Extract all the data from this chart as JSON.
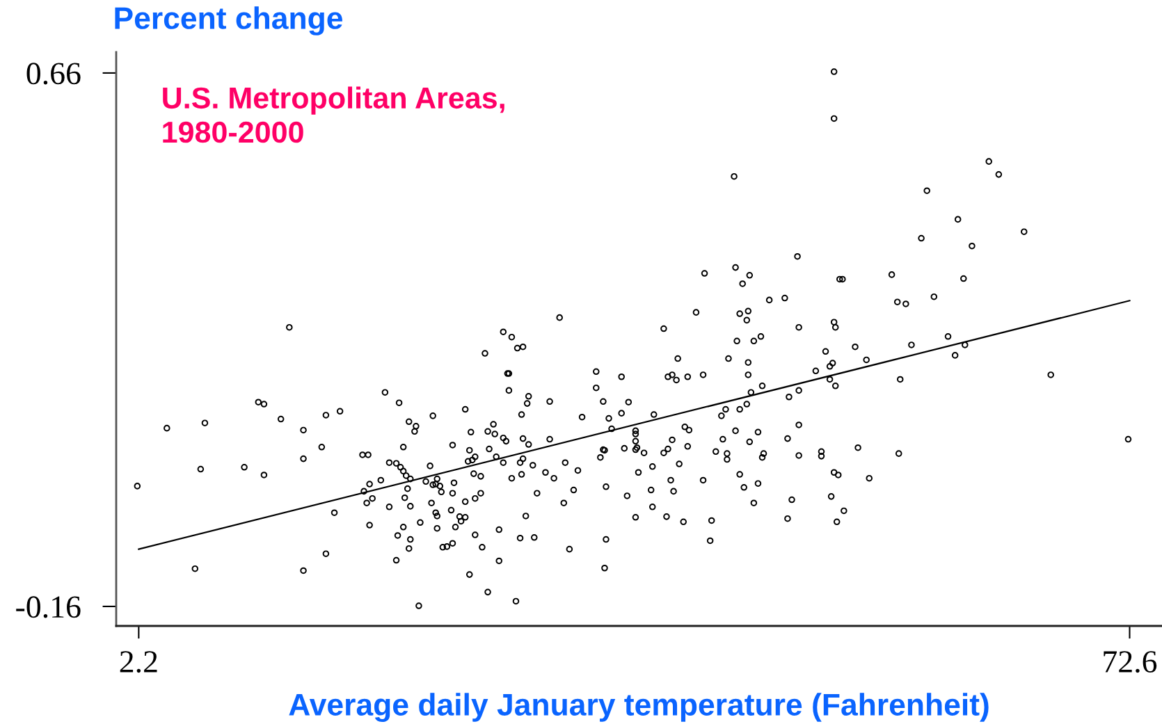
{
  "chart_data": {
    "type": "scatter",
    "title": "U.S. Metropolitan Areas,\n1980-2000",
    "xlabel": "Average daily January temperature (Fahrenheit)",
    "ylabel": "Percent change",
    "xlim": [
      0.6,
      74.9
    ],
    "ylim": [
      -0.19,
      0.692
    ],
    "xticks": [
      2.2,
      72.6
    ],
    "yticks": [
      -0.16,
      0.66
    ],
    "grid": false,
    "marker": "circle",
    "series": [
      {
        "color": "#000000",
        "x": [
          2.1,
          4.2,
          6.9,
          6.6,
          6.2,
          10.7,
          11.1,
          12.3,
          9.7,
          11.1,
          12.9,
          13.9,
          13.9,
          13.9,
          15.5,
          16.5,
          15.2,
          16.1,
          15.5,
          18.1,
          18.5,
          18.2,
          18.4,
          18.6,
          18.8,
          18.6,
          19.4,
          19.7,
          20.0,
          20.0,
          20.5,
          20.8,
          21.0,
          21.2,
          21.5,
          20.7,
          21.0,
          21.4,
          21.9,
          21.8,
          21.3,
          21.1,
          21.5,
          20.6,
          21.0,
          21.5,
          21.4,
          20.5,
          22.1,
          22.2,
          22.9,
          23.1,
          22.6,
          23.1,
          23.4,
          23.3,
          23.6,
          23.7,
          23.0,
          23.3,
          23.4,
          23.4,
          23.8,
          24.1,
          24.5,
          24.5,
          24.6,
          24.5,
          24.4,
          25.0,
          25.4,
          25.1,
          24.7,
          25.4,
          25.8,
          25.7,
          25.6,
          25.9,
          26.1,
          25.4,
          26.1,
          26.5,
          26.0,
          26.5,
          26.1,
          26.6,
          25.7,
          27.0,
          26.8,
          27.0,
          27.4,
          27.5,
          27.1,
          27.6,
          28.1,
          27.8,
          27.8,
          28.1,
          28.7,
          29.1,
          29.5,
          28.4,
          28.5,
          28.5,
          29.9,
          29.8,
          31.4,
          29.4,
          28.1,
          28.3,
          29.5,
          29.9,
          29.5,
          29.3,
          29.4,
          28.7,
          30.2,
          31.4,
          31.1,
          31.7,
          30.5,
          29.7,
          29.3,
          30.3,
          29.0,
          32.1,
          32.5,
          32.4,
          32.8,
          33.1,
          33.4,
          33.7,
          34.7,
          34.7,
          35.2,
          35.0,
          35.2,
          35.3,
          35.4,
          35.4,
          35.3,
          35.6,
          35.8,
          36.5,
          37.0,
          36.5,
          36.7,
          36.9,
          37.5,
          37.5,
          37.5,
          37.5,
          37.6,
          37.7,
          37.5,
          38.1,
          38.6,
          38.7,
          38.7,
          38.8,
          39.5,
          39.8,
          40.1,
          40.4,
          40.5,
          41.2,
          42.3,
          39.5,
          39.8,
          40.1,
          40.0,
          40.2,
          40.6,
          39.7,
          40.9,
          41.0,
          41.3,
          41.2,
          41.8,
          42.3,
          42.4,
          42.9,
          42.8,
          43.2,
          43.6,
          43.7,
          43.9,
          44.0,
          44.0,
          44.1,
          44.5,
          44.6,
          44.6,
          44.7,
          44.9,
          44.9,
          44.9,
          45.1,
          45.2,
          45.4,
          45.4,
          45.5,
          45.5,
          45.5,
          45.6,
          45.6,
          45.7,
          45.9,
          45.9,
          46.2,
          46.2,
          46.4,
          46.5,
          46.5,
          46.6,
          47.0,
          48.1,
          48.3,
          48.3,
          48.4,
          48.6,
          49.0,
          49.1,
          49.1,
          49.1,
          49.1,
          50.3,
          50.7,
          50.7,
          51.0,
          51.3,
          51.3,
          51.4,
          51.5,
          51.6,
          51.6,
          51.6,
          51.7,
          51.7,
          51.6,
          51.9,
          51.8,
          52.0,
          52.2,
          52.3,
          53.1,
          53.3,
          53.9,
          54.1,
          55.7,
          56.1,
          56.7,
          56.3,
          56.2,
          57.1,
          57.8,
          58.2,
          58.7,
          59.7,
          60.2,
          60.4,
          60.8,
          60.9,
          61.4,
          62.6,
          63.3,
          65.1,
          67.0,
          72.5
        ],
        "values": [
          0.025,
          0.114,
          0.122,
          0.051,
          -0.102,
          0.154,
          0.151,
          0.128,
          0.054,
          0.042,
          0.269,
          0.111,
          0.067,
          -0.105,
          0.134,
          0.14,
          0.085,
          -0.016,
          -0.079,
          0.073,
          0.073,
          0.017,
          -0.001,
          0.028,
          0.006,
          -0.035,
          0.034,
          0.169,
          -0.007,
          0.061,
          0.06,
          0.054,
          0.048,
          0.041,
          0.036,
          0.153,
          0.085,
          0.124,
          0.117,
          0.109,
          0.021,
          0.007,
          -0.006,
          -0.051,
          -0.038,
          -0.057,
          -0.071,
          -0.089,
          -0.159,
          -0.031,
          0.056,
          0.133,
          0.032,
          0.027,
          0.036,
          0.028,
          0.025,
          0.016,
          -0.001,
          -0.016,
          -0.021,
          -0.04,
          -0.069,
          -0.068,
          -0.063,
          0.088,
          0.03,
          0.014,
          -0.012,
          -0.022,
          -0.023,
          -0.029,
          -0.038,
          0.143,
          0.108,
          0.08,
          0.063,
          0.065,
          0.07,
          0.001,
          0.006,
          0.014,
          0.044,
          0.04,
          -0.05,
          -0.069,
          -0.111,
          -0.138,
          0.229,
          0.109,
          0.12,
          0.105,
          0.082,
          0.07,
          0.061,
          -0.042,
          -0.09,
          0.262,
          0.254,
          0.237,
          0.239,
          0.198,
          0.198,
          0.172,
          0.163,
          0.152,
          0.155,
          0.135,
          0.099,
          0.094,
          0.098,
          0.089,
          0.067,
          0.061,
          0.043,
          0.037,
          0.057,
          0.097,
          0.046,
          0.037,
          0.014,
          -0.021,
          -0.055,
          -0.054,
          -0.152,
          0.284,
          0.061,
          -0.001,
          -0.072,
          0.019,
          0.049,
          0.131,
          0.201,
          0.176,
          0.155,
          0.069,
          0.081,
          0.08,
          0.024,
          -0.057,
          -0.101,
          0.129,
          0.113,
          0.193,
          0.154,
          0.137,
          0.083,
          0.01,
          0.11,
          0.105,
          0.094,
          0.081,
          0.084,
          0.046,
          -0.023,
          0.076,
          0.019,
          -0.007,
          0.055,
          0.135,
          0.267,
          0.193,
          0.196,
          0.188,
          0.221,
          0.193,
          0.196,
          0.076,
          0.082,
          0.096,
          0.034,
          0.017,
          0.059,
          -0.022,
          -0.03,
          0.116,
          0.111,
          0.086,
          0.292,
          0.034,
          0.352,
          -0.028,
          -0.059,
          0.078,
          0.133,
          0.097,
          0.143,
          0.075,
          0.066,
          0.221,
          0.501,
          0.361,
          0.11,
          0.248,
          0.29,
          0.143,
          0.043,
          0.336,
          0.023,
          0.28,
          0.151,
          0.196,
          0.294,
          0.215,
          0.093,
          0.349,
          0.169,
          0.248,
          -0.001,
          0.108,
          0.029,
          0.255,
          0.179,
          0.069,
          0.075,
          0.311,
          0.314,
          0.098,
          -0.025,
          0.162,
          0.004,
          0.378,
          0.269,
          0.172,
          0.119,
          0.072,
          0.202,
          0.078,
          0.071,
          0.232,
          0.209,
          0.189,
          0.009,
          0.214,
          0.662,
          0.59,
          0.277,
          0.269,
          0.179,
          0.046,
          0.042,
          -0.03,
          0.343,
          0.343,
          -0.013,
          0.239,
          0.084,
          0.219,
          0.037,
          0.35,
          0.308,
          0.305,
          0.189,
          0.075,
          0.242,
          0.406,
          0.479,
          0.316,
          0.255,
          0.226,
          0.435,
          0.344,
          0.242,
          0.394,
          0.524,
          0.504,
          0.416,
          0.196,
          0.097
        ]
      },
      {
        "type": "line",
        "color": "#000000",
        "x": [
          2.2,
          72.6
        ],
        "values": [
          -0.072,
          0.31
        ],
        "marker": "none",
        "line_style": "solid"
      }
    ]
  }
}
